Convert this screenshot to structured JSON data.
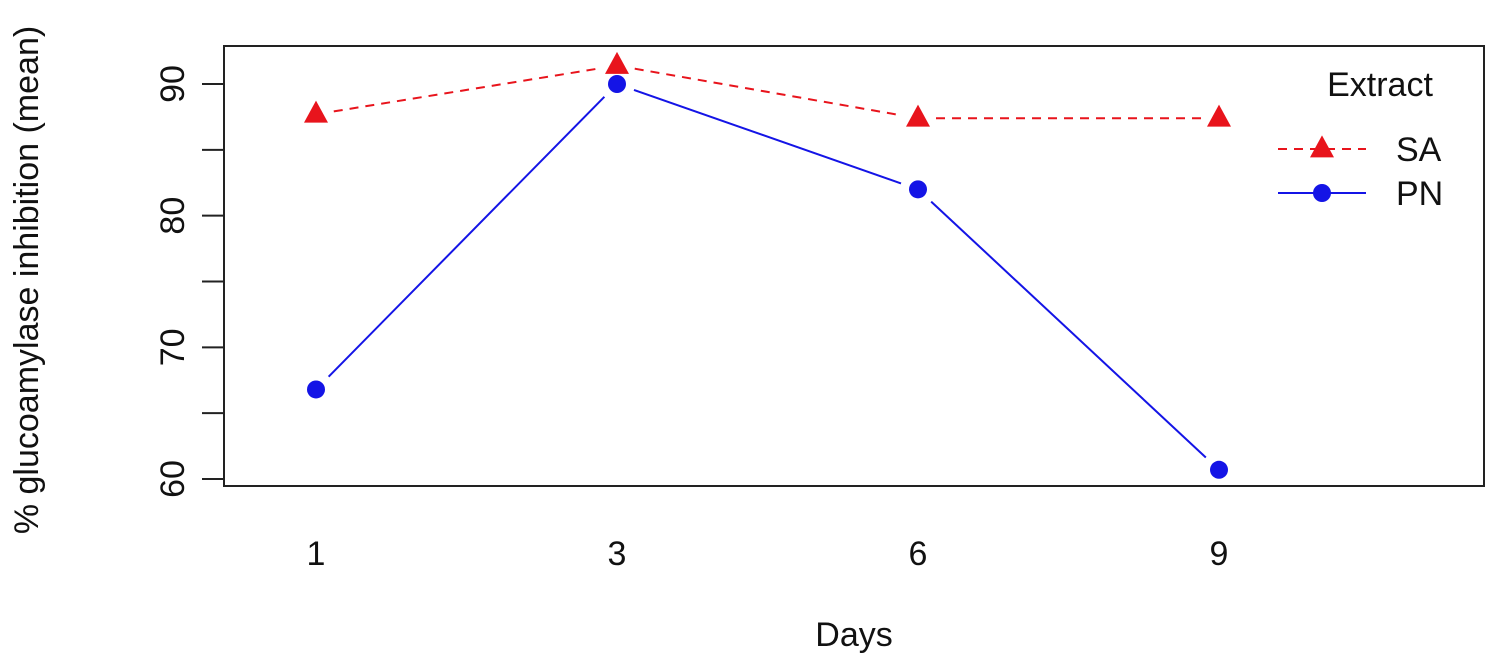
{
  "chart_data": {
    "type": "line",
    "xlabel": "Days",
    "ylabel": "% glucoamylase inhibition (mean)",
    "categories": [
      "1",
      "3",
      "6",
      "9"
    ],
    "ylim": [
      60,
      91
    ],
    "yticks": [
      60,
      65,
      70,
      75,
      80,
      85,
      90
    ],
    "ytick_labels": [
      "60",
      "70",
      "80",
      "90"
    ],
    "series": [
      {
        "name": "SA",
        "values": [
          87.7,
          91.4,
          87.4,
          87.4
        ],
        "color": "#e8141c",
        "marker": "triangle",
        "line_style": "dashed"
      },
      {
        "name": "PN",
        "values": [
          66.8,
          90.0,
          82.0,
          60.7
        ],
        "color": "#1414e6",
        "marker": "circle",
        "line_style": "solid"
      }
    ],
    "legend": {
      "title": "Extract",
      "position": "top-right"
    },
    "grid": false
  }
}
